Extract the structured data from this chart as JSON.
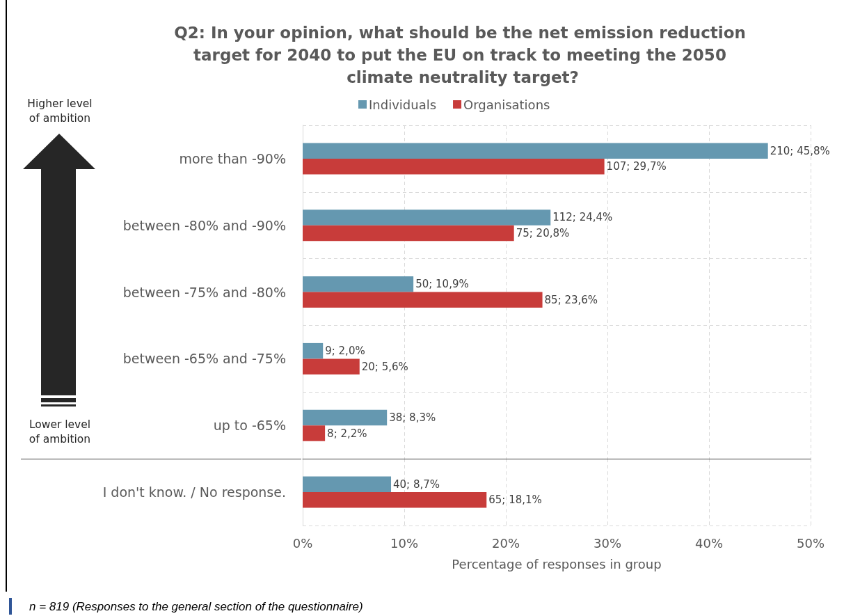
{
  "chart_data": [
    {
      "type": "bar",
      "orientation": "horizontal",
      "title": "Q2: In your opinion, what should be the net emission reduction target for 2040 to put the EU on track to meeting the 2050 climate neutrality target?",
      "categories": [
        "more than -90%",
        "between -80% and -90%",
        "between -75% and -80%",
        "between -65% and -75%",
        "up to -65%"
      ],
      "series": [
        {
          "name": "Individuals",
          "color": "#6598b0",
          "values": [
            45.8,
            24.4,
            10.9,
            2.0,
            8.3
          ],
          "value_labels": [
            "210; 45,8%",
            "112; 24,4%",
            "50; 10,9%",
            "9; 2,0%",
            "38; 8,3%"
          ]
        },
        {
          "name": "Organisations",
          "color": "#c83c3a",
          "values": [
            29.7,
            20.8,
            23.6,
            5.6,
            2.2
          ],
          "value_labels": [
            "107; 29,7%",
            "75; 20,8%",
            "85; 23,6%",
            "20; 5,6%",
            "8; 2,2%"
          ]
        }
      ],
      "xlim": [
        0,
        50
      ],
      "xticks": [
        0,
        10,
        20,
        30,
        40,
        50
      ],
      "tick_labels": "y",
      "grid": true,
      "legend": "top",
      "annotations": [
        "Higher level of ambition",
        "Lower level of ambition"
      ]
    },
    {
      "type": "bar",
      "orientation": "horizontal",
      "xlabel": "Percentage of responses in group",
      "categories": [
        "I don't know. / No response."
      ],
      "series": [
        {
          "color": "#6598b0",
          "values": [
            8.7
          ],
          "value_labels": [
            "40; 8,7%"
          ]
        },
        {
          "color": "#c83c3a",
          "values": [
            18.1
          ],
          "value_labels": [
            "65; 18,1%"
          ]
        }
      ],
      "xlim": [
        0,
        50
      ],
      "xticks": [
        {
          "value": 0,
          "label": "0%"
        },
        {
          "value": 10,
          "label": "10%"
        },
        {
          "value": 20,
          "label": "20%"
        },
        {
          "value": 30,
          "label": "30%"
        },
        {
          "value": 40,
          "label": "40%"
        },
        {
          "value": 50,
          "label": "50%"
        }
      ],
      "grid": true,
      "annotations": [
        "n = 819 (Responses to the general section of the questionnaire)"
      ]
    }
  ]
}
